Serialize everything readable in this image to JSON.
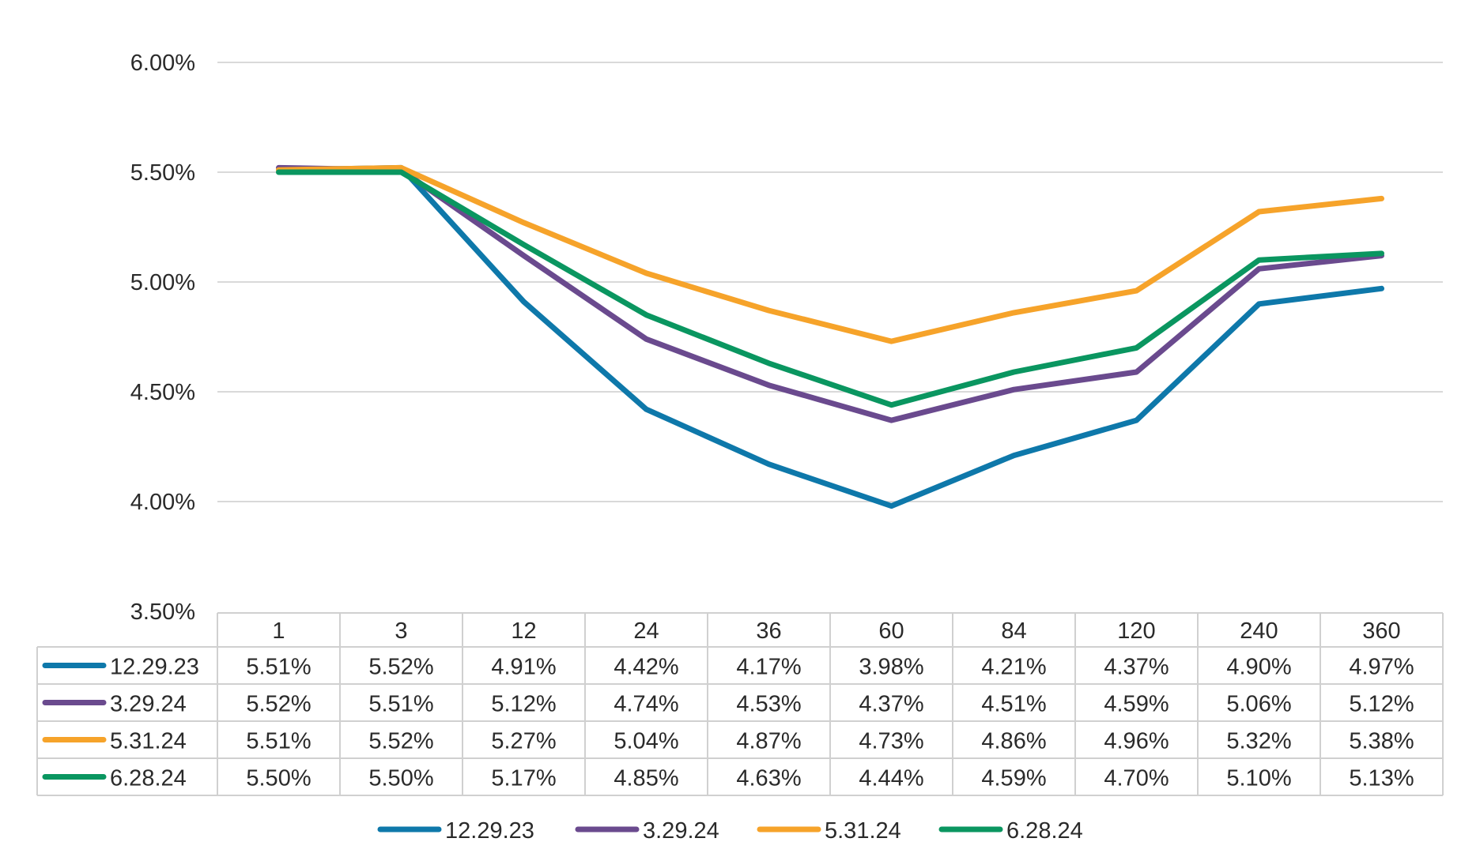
{
  "chart_data": {
    "type": "line",
    "title": "",
    "xlabel": "",
    "ylabel": "",
    "categories": [
      "1",
      "3",
      "12",
      "24",
      "36",
      "60",
      "84",
      "120",
      "240",
      "360"
    ],
    "ylim": [
      0.035,
      0.06
    ],
    "yticks": [
      "6.00%",
      "5.50%",
      "5.00%",
      "4.50%",
      "4.00%",
      "3.50%"
    ],
    "grid": true,
    "legend_position": "bottom",
    "data_table": true,
    "series": [
      {
        "name": "12.29.23",
        "color": "#0e78aa",
        "values": [
          0.0551,
          0.0552,
          0.0491,
          0.0442,
          0.0417,
          0.0398,
          0.0421,
          0.0437,
          0.049,
          0.0497
        ],
        "labels": [
          "5.51%",
          "5.52%",
          "4.91%",
          "4.42%",
          "4.17%",
          "3.98%",
          "4.21%",
          "4.37%",
          "4.90%",
          "4.97%"
        ]
      },
      {
        "name": "3.29.24",
        "color": "#6a4a8e",
        "values": [
          0.0552,
          0.0551,
          0.0512,
          0.0474,
          0.0453,
          0.0437,
          0.0451,
          0.0459,
          0.0506,
          0.0512
        ],
        "labels": [
          "5.52%",
          "5.51%",
          "5.12%",
          "4.74%",
          "4.53%",
          "4.37%",
          "4.51%",
          "4.59%",
          "5.06%",
          "5.12%"
        ]
      },
      {
        "name": "5.31.24",
        "color": "#f6a32a",
        "values": [
          0.0551,
          0.0552,
          0.0527,
          0.0504,
          0.0487,
          0.0473,
          0.0486,
          0.0496,
          0.0532,
          0.0538
        ],
        "labels": [
          "5.51%",
          "5.52%",
          "5.27%",
          "5.04%",
          "4.87%",
          "4.73%",
          "4.86%",
          "4.96%",
          "5.32%",
          "5.38%"
        ]
      },
      {
        "name": "6.28.24",
        "color": "#0a9660",
        "values": [
          0.055,
          0.055,
          0.0517,
          0.0485,
          0.0463,
          0.0444,
          0.0459,
          0.047,
          0.051,
          0.0513
        ],
        "labels": [
          "5.50%",
          "5.50%",
          "5.17%",
          "4.85%",
          "4.63%",
          "4.44%",
          "4.59%",
          "4.70%",
          "5.10%",
          "5.13%"
        ]
      }
    ]
  }
}
